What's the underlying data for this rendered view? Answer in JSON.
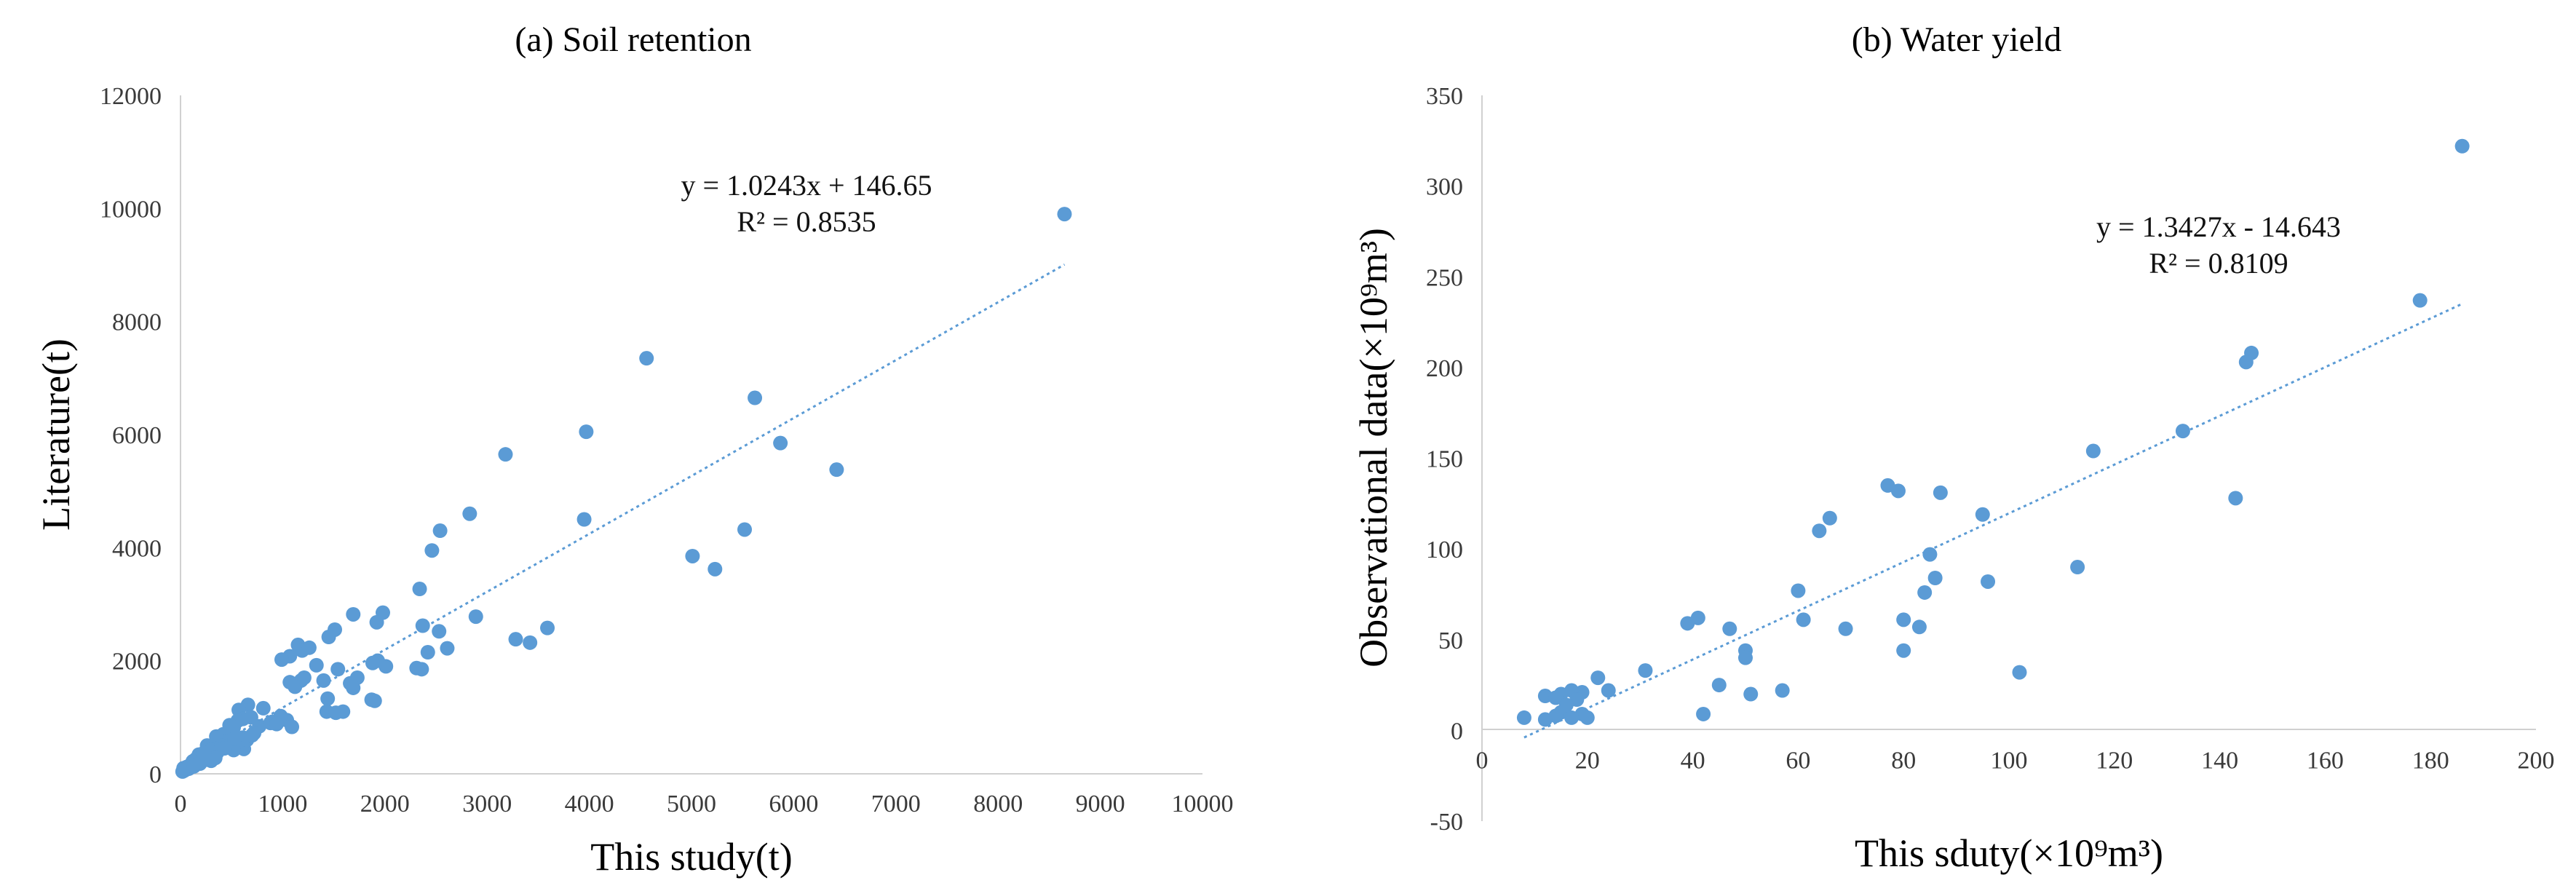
{
  "chart_data": [
    {
      "type": "scatter",
      "title": "(a) Soil retention",
      "xlabel": "This study(t)",
      "ylabel": "Literature(t)",
      "xlim": [
        0,
        10000
      ],
      "ylim": [
        0,
        12000
      ],
      "xticks": [
        "0",
        "1000",
        "2000",
        "3000",
        "4000",
        "5000",
        "6000",
        "7000",
        "8000",
        "9000",
        "10000"
      ],
      "yticks": [
        "0",
        "2000",
        "4000",
        "6000",
        "8000",
        "10000",
        "12000"
      ],
      "marker_color": "#5B9BD5",
      "trendline_color": "#5B9BD5",
      "equation": "y = 1.0243x + 146.65",
      "r_squared": "R² = 0.8535",
      "trendline": {
        "slope": 1.0243,
        "intercept": 146.65,
        "x_range": [
          0,
          8650
        ]
      },
      "points": [
        [
          8650,
          9900
        ],
        [
          4560,
          7350
        ],
        [
          5620,
          6650
        ],
        [
          3180,
          5650
        ],
        [
          3970,
          6050
        ],
        [
          5870,
          5850
        ],
        [
          6420,
          5380
        ],
        [
          2830,
          4600
        ],
        [
          2540,
          4300
        ],
        [
          3950,
          4500
        ],
        [
          5520,
          4320
        ],
        [
          2460,
          3950
        ],
        [
          5010,
          3850
        ],
        [
          5230,
          3620
        ],
        [
          2340,
          3270
        ],
        [
          2890,
          2780
        ],
        [
          3590,
          2580
        ],
        [
          3280,
          2380
        ],
        [
          3420,
          2320
        ],
        [
          2370,
          2620
        ],
        [
          2530,
          2520
        ],
        [
          2610,
          2220
        ],
        [
          2420,
          2150
        ],
        [
          2310,
          1870
        ],
        [
          2360,
          1850
        ],
        [
          1980,
          2850
        ],
        [
          1920,
          2680
        ],
        [
          1690,
          2820
        ],
        [
          1510,
          2550
        ],
        [
          1450,
          2420
        ],
        [
          1150,
          2280
        ],
        [
          1190,
          2180
        ],
        [
          1260,
          2230
        ],
        [
          1330,
          1920
        ],
        [
          1070,
          2080
        ],
        [
          990,
          2020
        ],
        [
          1930,
          2000
        ],
        [
          1880,
          1960
        ],
        [
          2010,
          1900
        ],
        [
          1730,
          1700
        ],
        [
          1540,
          1850
        ],
        [
          1400,
          1650
        ],
        [
          1180,
          1650
        ],
        [
          1120,
          1540
        ],
        [
          1070,
          1620
        ],
        [
          1870,
          1310
        ],
        [
          1900,
          1290
        ],
        [
          1660,
          1600
        ],
        [
          1690,
          1520
        ],
        [
          1440,
          1330
        ],
        [
          1430,
          1100
        ],
        [
          1520,
          1080
        ],
        [
          1590,
          1100
        ],
        [
          1210,
          1700
        ],
        [
          1040,
          950
        ],
        [
          980,
          1020
        ],
        [
          900,
          920
        ],
        [
          1090,
          830
        ],
        [
          810,
          1160
        ],
        [
          660,
          1220
        ],
        [
          570,
          1130
        ],
        [
          690,
          1000
        ],
        [
          610,
          970
        ],
        [
          770,
          840
        ],
        [
          560,
          940
        ],
        [
          520,
          820
        ],
        [
          480,
          860
        ],
        [
          720,
          720
        ],
        [
          420,
          700
        ],
        [
          350,
          660
        ],
        [
          610,
          640
        ],
        [
          460,
          580
        ],
        [
          600,
          540
        ],
        [
          550,
          480
        ],
        [
          620,
          440
        ],
        [
          520,
          420
        ],
        [
          400,
          500
        ],
        [
          330,
          450
        ],
        [
          260,
          500
        ],
        [
          300,
          420
        ],
        [
          360,
          380
        ],
        [
          280,
          330
        ],
        [
          220,
          300
        ],
        [
          180,
          340
        ],
        [
          150,
          260
        ],
        [
          120,
          220
        ],
        [
          200,
          210
        ],
        [
          100,
          160
        ],
        [
          60,
          120
        ],
        [
          80,
          90
        ],
        [
          40,
          60
        ],
        [
          20,
          40
        ],
        [
          30,
          100
        ],
        [
          130,
          130
        ],
        [
          250,
          250
        ],
        [
          340,
          280
        ],
        [
          190,
          180
        ],
        [
          300,
          230
        ],
        [
          880,
          900
        ],
        [
          940,
          880
        ],
        [
          650,
          600
        ],
        [
          700,
          680
        ],
        [
          530,
          620
        ],
        [
          430,
          450
        ],
        [
          230,
          370
        ]
      ]
    },
    {
      "type": "scatter",
      "title": "(b) Water yield",
      "xlabel": "This sduty(×10⁹m³)",
      "ylabel": "Observational data(×10⁹m³)",
      "xlim": [
        0,
        200
      ],
      "ylim": [
        -50,
        350
      ],
      "xticks": [
        "0",
        "20",
        "40",
        "60",
        "80",
        "100",
        "120",
        "140",
        "160",
        "180",
        "200"
      ],
      "yticks": [
        "-50",
        "0",
        "50",
        "100",
        "150",
        "200",
        "250",
        "300",
        "350"
      ],
      "marker_color": "#5B9BD5",
      "trendline_color": "#5B9BD5",
      "equation": "y = 1.3427x - 14.643",
      "r_squared": "R² = 0.8109",
      "trendline": {
        "slope": 1.3427,
        "intercept": -14.643,
        "x_range": [
          8,
          186
        ]
      },
      "points": [
        [
          186,
          322
        ],
        [
          178,
          237
        ],
        [
          146,
          208
        ],
        [
          145,
          203
        ],
        [
          133,
          165
        ],
        [
          116,
          154
        ],
        [
          143,
          128
        ],
        [
          77,
          135
        ],
        [
          79,
          132
        ],
        [
          87,
          131
        ],
        [
          95,
          119
        ],
        [
          66,
          117
        ],
        [
          64,
          110
        ],
        [
          113,
          90
        ],
        [
          85,
          97
        ],
        [
          86,
          84
        ],
        [
          96,
          82
        ],
        [
          60,
          77
        ],
        [
          84,
          76
        ],
        [
          41,
          62
        ],
        [
          39,
          59
        ],
        [
          61,
          61
        ],
        [
          47,
          56
        ],
        [
          69,
          56
        ],
        [
          80,
          61
        ],
        [
          83,
          57
        ],
        [
          80,
          44
        ],
        [
          50,
          44
        ],
        [
          50,
          40
        ],
        [
          102,
          32
        ],
        [
          31,
          33
        ],
        [
          22,
          29
        ],
        [
          45,
          25
        ],
        [
          24,
          22
        ],
        [
          57,
          22
        ],
        [
          51,
          20
        ],
        [
          19,
          21
        ],
        [
          17,
          22
        ],
        [
          15,
          20
        ],
        [
          12,
          19
        ],
        [
          14,
          18
        ],
        [
          18,
          17
        ],
        [
          16,
          14
        ],
        [
          15,
          10
        ],
        [
          19,
          9
        ],
        [
          17,
          7
        ],
        [
          14,
          8
        ],
        [
          12,
          6
        ],
        [
          8,
          7
        ],
        [
          42,
          9
        ],
        [
          20,
          7
        ]
      ]
    }
  ]
}
